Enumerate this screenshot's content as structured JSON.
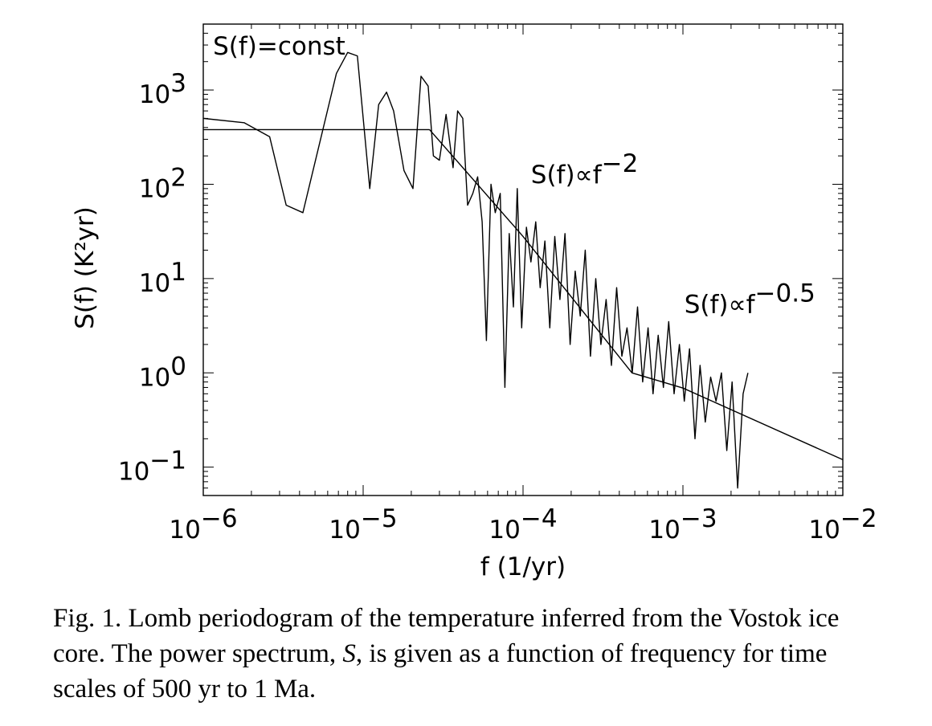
{
  "caption": {
    "before_symbol": "Fig. 1. Lomb periodogram of the temperature inferred from the Vostok ice core. The power spectrum, ",
    "symbol": "S",
    "after_symbol": ", is given as a function of frequency for time scales of 500 yr to 1 Ma."
  },
  "chart_data": {
    "type": "line",
    "title": "",
    "xlabel": "f (1/yr)",
    "ylabel": "S(f) (K²yr)",
    "xscale": "log",
    "yscale": "log",
    "xlim": [
      1e-06,
      0.01
    ],
    "ylim": [
      0.05,
      5000
    ],
    "x_ticks": [
      {
        "value": 1e-06,
        "base": "10",
        "exp": "−6"
      },
      {
        "value": 1e-05,
        "base": "10",
        "exp": "−5"
      },
      {
        "value": 0.0001,
        "base": "10",
        "exp": "−4"
      },
      {
        "value": 0.001,
        "base": "10",
        "exp": "−3"
      },
      {
        "value": 0.01,
        "base": "10",
        "exp": "−2"
      }
    ],
    "y_ticks": [
      {
        "value": 0.1,
        "base": "10",
        "exp": "−1"
      },
      {
        "value": 1,
        "base": "10",
        "exp": "0"
      },
      {
        "value": 10,
        "base": "10",
        "exp": "1"
      },
      {
        "value": 100,
        "base": "10",
        "exp": "2"
      },
      {
        "value": 1000,
        "base": "10",
        "exp": "3"
      }
    ],
    "grid": false,
    "series": [
      {
        "x": [
          1e-06,
          1.8e-06,
          2.6e-06,
          3.3e-06,
          4.2e-06,
          6.8e-06,
          8e-06,
          9.2e-06,
          1.1e-05,
          1.25e-05,
          1.4e-05,
          1.55e-05,
          1.8e-05,
          2.05e-05,
          2.3e-05,
          2.55e-05,
          2.75e-05,
          3e-05,
          3.3e-05,
          3.65e-05,
          3.9e-05,
          4.2e-05,
          4.5e-05,
          4.85e-05,
          5.2e-05,
          5.55e-05,
          5.9e-05,
          6.3e-05,
          6.7e-05,
          7.2e-05,
          7.7e-05,
          8.2e-05,
          8.7e-05,
          9.2e-05,
          9.8e-05,
          0.000105,
          0.000112,
          0.00012,
          0.000128,
          0.000137,
          0.000147,
          0.000158,
          0.00017,
          0.000183,
          0.000197,
          0.000212,
          0.000228,
          0.000245,
          0.000264,
          0.000285,
          0.000307,
          0.000331,
          0.000357,
          0.000385,
          0.000415,
          0.000447,
          0.000482,
          0.00052,
          0.00056,
          0.000605,
          0.00065,
          0.0007,
          0.000755,
          0.000815,
          0.00088,
          0.00095,
          0.00102,
          0.0011,
          0.00119,
          0.00128,
          0.00138,
          0.00149,
          0.00161,
          0.00174,
          0.00188,
          0.00203,
          0.0022,
          0.00238,
          0.00255
        ],
        "y": [
          500,
          450,
          320,
          60,
          50,
          1500,
          2500,
          2300,
          90,
          700,
          950,
          600,
          140,
          90,
          1400,
          1100,
          200,
          180,
          550,
          150,
          600,
          500,
          60,
          80,
          120,
          40,
          2.2,
          100,
          50,
          80,
          0.7,
          30,
          5,
          90,
          3,
          35,
          15,
          40,
          8,
          25,
          3,
          28,
          6,
          30,
          2,
          12,
          4,
          20,
          1.5,
          10,
          2,
          6,
          1.2,
          8,
          1.5,
          3,
          1,
          5,
          0.8,
          3,
          0.6,
          2.5,
          0.7,
          3.5,
          0.6,
          2,
          0.5,
          1.8,
          0.2,
          1.2,
          0.3,
          0.9,
          0.5,
          1,
          0.15,
          0.8,
          0.06,
          0.6,
          1
        ]
      },
      {
        "x": [
          1e-06,
          1e-05,
          2.6e-05,
          0.0001,
          0.00048,
          0.001,
          0.01
        ],
        "y": [
          380,
          380,
          380,
          28,
          1.0,
          0.69,
          0.12
        ]
      }
    ],
    "annotations": [
      {
        "text": "S(f)=const",
        "x": 1.15e-06,
        "y": 3000,
        "exp": ""
      },
      {
        "text": "S(f)∝f",
        "x": 0.000112,
        "y": 130,
        "exp": "−2"
      },
      {
        "text": "S(f)∝f",
        "x": 0.00102,
        "y": 5.5,
        "exp": "−0.5"
      }
    ]
  }
}
